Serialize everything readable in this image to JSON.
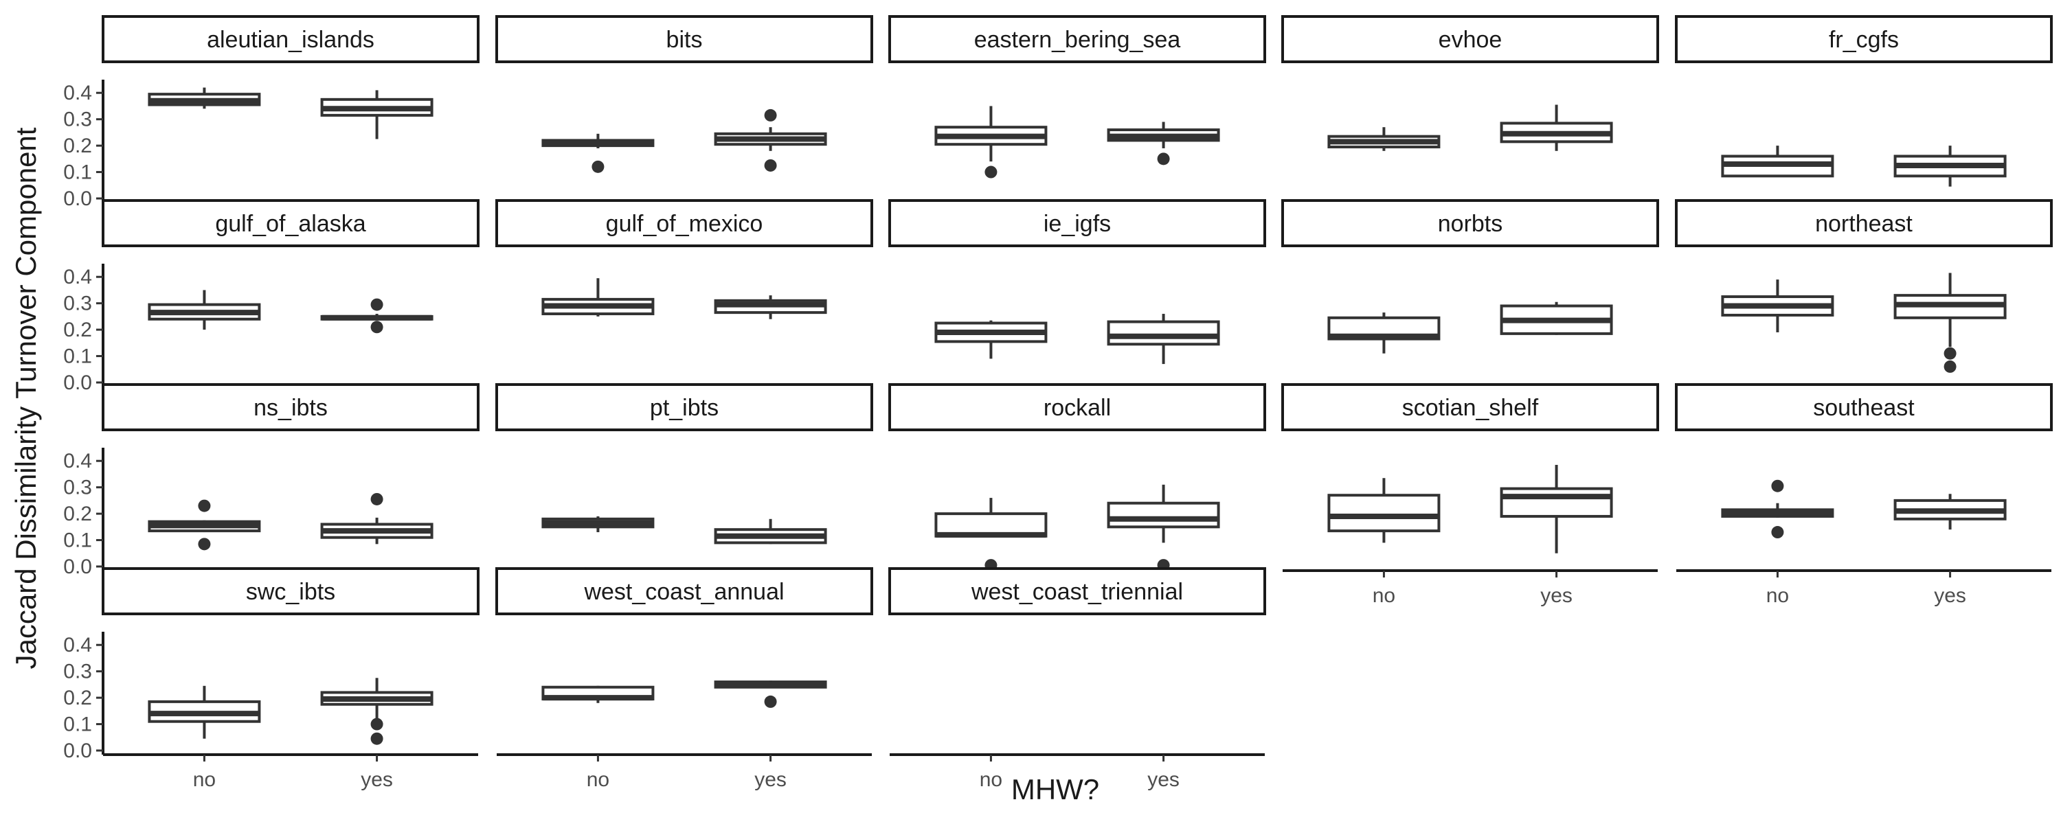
{
  "chart_data": {
    "type": "boxplot",
    "xlabel": "MHW?",
    "ylabel": "Jaccard Dissimilarity Turnover Component",
    "categories": [
      "no",
      "yes"
    ],
    "ylim": [
      0,
      0.45
    ],
    "yticks": [
      "0.0",
      "0.1",
      "0.2",
      "0.3",
      "0.4"
    ],
    "grid": false,
    "panels": [
      {
        "name": "aleutian_islands",
        "boxes": [
          {
            "category": "no",
            "min": 0.34,
            "q1": 0.355,
            "median": 0.37,
            "q3": 0.395,
            "max": 0.42,
            "outliers": []
          },
          {
            "category": "yes",
            "min": 0.225,
            "q1": 0.315,
            "median": 0.34,
            "q3": 0.375,
            "max": 0.41,
            "outliers": []
          }
        ]
      },
      {
        "name": "bits",
        "boxes": [
          {
            "category": "no",
            "min": 0.19,
            "q1": 0.2,
            "median": 0.21,
            "q3": 0.22,
            "max": 0.245,
            "outliers": [
              0.12
            ]
          },
          {
            "category": "yes",
            "min": 0.18,
            "q1": 0.205,
            "median": 0.225,
            "q3": 0.245,
            "max": 0.27,
            "outliers": [
              0.315,
              0.125
            ]
          }
        ]
      },
      {
        "name": "eastern_bering_sea",
        "boxes": [
          {
            "category": "no",
            "min": 0.14,
            "q1": 0.205,
            "median": 0.235,
            "q3": 0.27,
            "max": 0.35,
            "outliers": [
              0.1
            ]
          },
          {
            "category": "yes",
            "min": 0.19,
            "q1": 0.22,
            "median": 0.235,
            "q3": 0.26,
            "max": 0.29,
            "outliers": [
              0.15
            ]
          }
        ]
      },
      {
        "name": "evhoe",
        "boxes": [
          {
            "category": "no",
            "min": 0.18,
            "q1": 0.195,
            "median": 0.215,
            "q3": 0.235,
            "max": 0.27,
            "outliers": []
          },
          {
            "category": "yes",
            "min": 0.18,
            "q1": 0.215,
            "median": 0.245,
            "q3": 0.285,
            "max": 0.355,
            "outliers": []
          }
        ]
      },
      {
        "name": "fr_cgfs",
        "boxes": [
          {
            "category": "no",
            "min": 0.085,
            "q1": 0.085,
            "median": 0.13,
            "q3": 0.16,
            "max": 0.2,
            "outliers": []
          },
          {
            "category": "yes",
            "min": 0.045,
            "q1": 0.085,
            "median": 0.125,
            "q3": 0.16,
            "max": 0.2,
            "outliers": []
          }
        ]
      },
      {
        "name": "gulf_of_alaska",
        "boxes": [
          {
            "category": "no",
            "min": 0.2,
            "q1": 0.24,
            "median": 0.265,
            "q3": 0.295,
            "max": 0.35,
            "outliers": []
          },
          {
            "category": "yes",
            "min": 0.235,
            "q1": 0.24,
            "median": 0.245,
            "q3": 0.25,
            "max": 0.26,
            "outliers": [
              0.295,
              0.21
            ]
          }
        ]
      },
      {
        "name": "gulf_of_mexico",
        "boxes": [
          {
            "category": "no",
            "min": 0.25,
            "q1": 0.26,
            "median": 0.29,
            "q3": 0.315,
            "max": 0.395,
            "outliers": []
          },
          {
            "category": "yes",
            "min": 0.24,
            "q1": 0.265,
            "median": 0.295,
            "q3": 0.31,
            "max": 0.33,
            "outliers": []
          }
        ]
      },
      {
        "name": "ie_igfs",
        "boxes": [
          {
            "category": "no",
            "min": 0.09,
            "q1": 0.155,
            "median": 0.19,
            "q3": 0.225,
            "max": 0.235,
            "outliers": []
          },
          {
            "category": "yes",
            "min": 0.07,
            "q1": 0.145,
            "median": 0.175,
            "q3": 0.23,
            "max": 0.26,
            "outliers": []
          }
        ]
      },
      {
        "name": "norbts",
        "boxes": [
          {
            "category": "no",
            "min": 0.11,
            "q1": 0.165,
            "median": 0.175,
            "q3": 0.245,
            "max": 0.265,
            "outliers": []
          },
          {
            "category": "yes",
            "min": 0.18,
            "q1": 0.185,
            "median": 0.235,
            "q3": 0.29,
            "max": 0.305,
            "outliers": []
          }
        ]
      },
      {
        "name": "northeast",
        "boxes": [
          {
            "category": "no",
            "min": 0.19,
            "q1": 0.255,
            "median": 0.29,
            "q3": 0.325,
            "max": 0.39,
            "outliers": []
          },
          {
            "category": "yes",
            "min": 0.135,
            "q1": 0.245,
            "median": 0.295,
            "q3": 0.33,
            "max": 0.415,
            "outliers": [
              0.11,
              0.06
            ]
          }
        ]
      },
      {
        "name": "ns_ibts",
        "boxes": [
          {
            "category": "no",
            "min": 0.13,
            "q1": 0.135,
            "median": 0.155,
            "q3": 0.17,
            "max": 0.175,
            "outliers": [
              0.23,
              0.085
            ]
          },
          {
            "category": "yes",
            "min": 0.085,
            "q1": 0.11,
            "median": 0.135,
            "q3": 0.16,
            "max": 0.185,
            "outliers": [
              0.255
            ]
          }
        ]
      },
      {
        "name": "pt_ibts",
        "boxes": [
          {
            "category": "no",
            "min": 0.13,
            "q1": 0.15,
            "median": 0.165,
            "q3": 0.18,
            "max": 0.19,
            "outliers": []
          },
          {
            "category": "yes",
            "min": 0.085,
            "q1": 0.09,
            "median": 0.115,
            "q3": 0.14,
            "max": 0.18,
            "outliers": []
          }
        ]
      },
      {
        "name": "rockall",
        "boxes": [
          {
            "category": "no",
            "min": 0.115,
            "q1": 0.115,
            "median": 0.12,
            "q3": 0.2,
            "max": 0.26,
            "outliers": [
              0.005
            ]
          },
          {
            "category": "yes",
            "min": 0.09,
            "q1": 0.15,
            "median": 0.18,
            "q3": 0.24,
            "max": 0.31,
            "outliers": [
              0.005
            ]
          }
        ]
      },
      {
        "name": "scotian_shelf",
        "boxes": [
          {
            "category": "no",
            "min": 0.09,
            "q1": 0.135,
            "median": 0.19,
            "q3": 0.27,
            "max": 0.335,
            "outliers": []
          },
          {
            "category": "yes",
            "min": 0.05,
            "q1": 0.19,
            "median": 0.265,
            "q3": 0.295,
            "max": 0.385,
            "outliers": []
          }
        ]
      },
      {
        "name": "southeast",
        "boxes": [
          {
            "category": "no",
            "min": 0.185,
            "q1": 0.19,
            "median": 0.205,
            "q3": 0.215,
            "max": 0.24,
            "outliers": [
              0.305,
              0.13
            ]
          },
          {
            "category": "yes",
            "min": 0.14,
            "q1": 0.18,
            "median": 0.21,
            "q3": 0.25,
            "max": 0.275,
            "outliers": []
          }
        ]
      },
      {
        "name": "swc_ibts",
        "boxes": [
          {
            "category": "no",
            "min": 0.045,
            "q1": 0.11,
            "median": 0.14,
            "q3": 0.185,
            "max": 0.245,
            "outliers": []
          },
          {
            "category": "yes",
            "min": 0.12,
            "q1": 0.175,
            "median": 0.195,
            "q3": 0.22,
            "max": 0.275,
            "outliers": [
              0.1,
              0.045
            ]
          }
        ]
      },
      {
        "name": "west_coast_annual",
        "boxes": [
          {
            "category": "no",
            "min": 0.18,
            "q1": 0.195,
            "median": 0.2,
            "q3": 0.24,
            "max": 0.245,
            "outliers": []
          },
          {
            "category": "yes",
            "min": 0.24,
            "q1": 0.24,
            "median": 0.25,
            "q3": 0.26,
            "max": 0.265,
            "outliers": [
              0.185
            ]
          }
        ]
      },
      {
        "name": "west_coast_triennial",
        "boxes": []
      }
    ]
  }
}
